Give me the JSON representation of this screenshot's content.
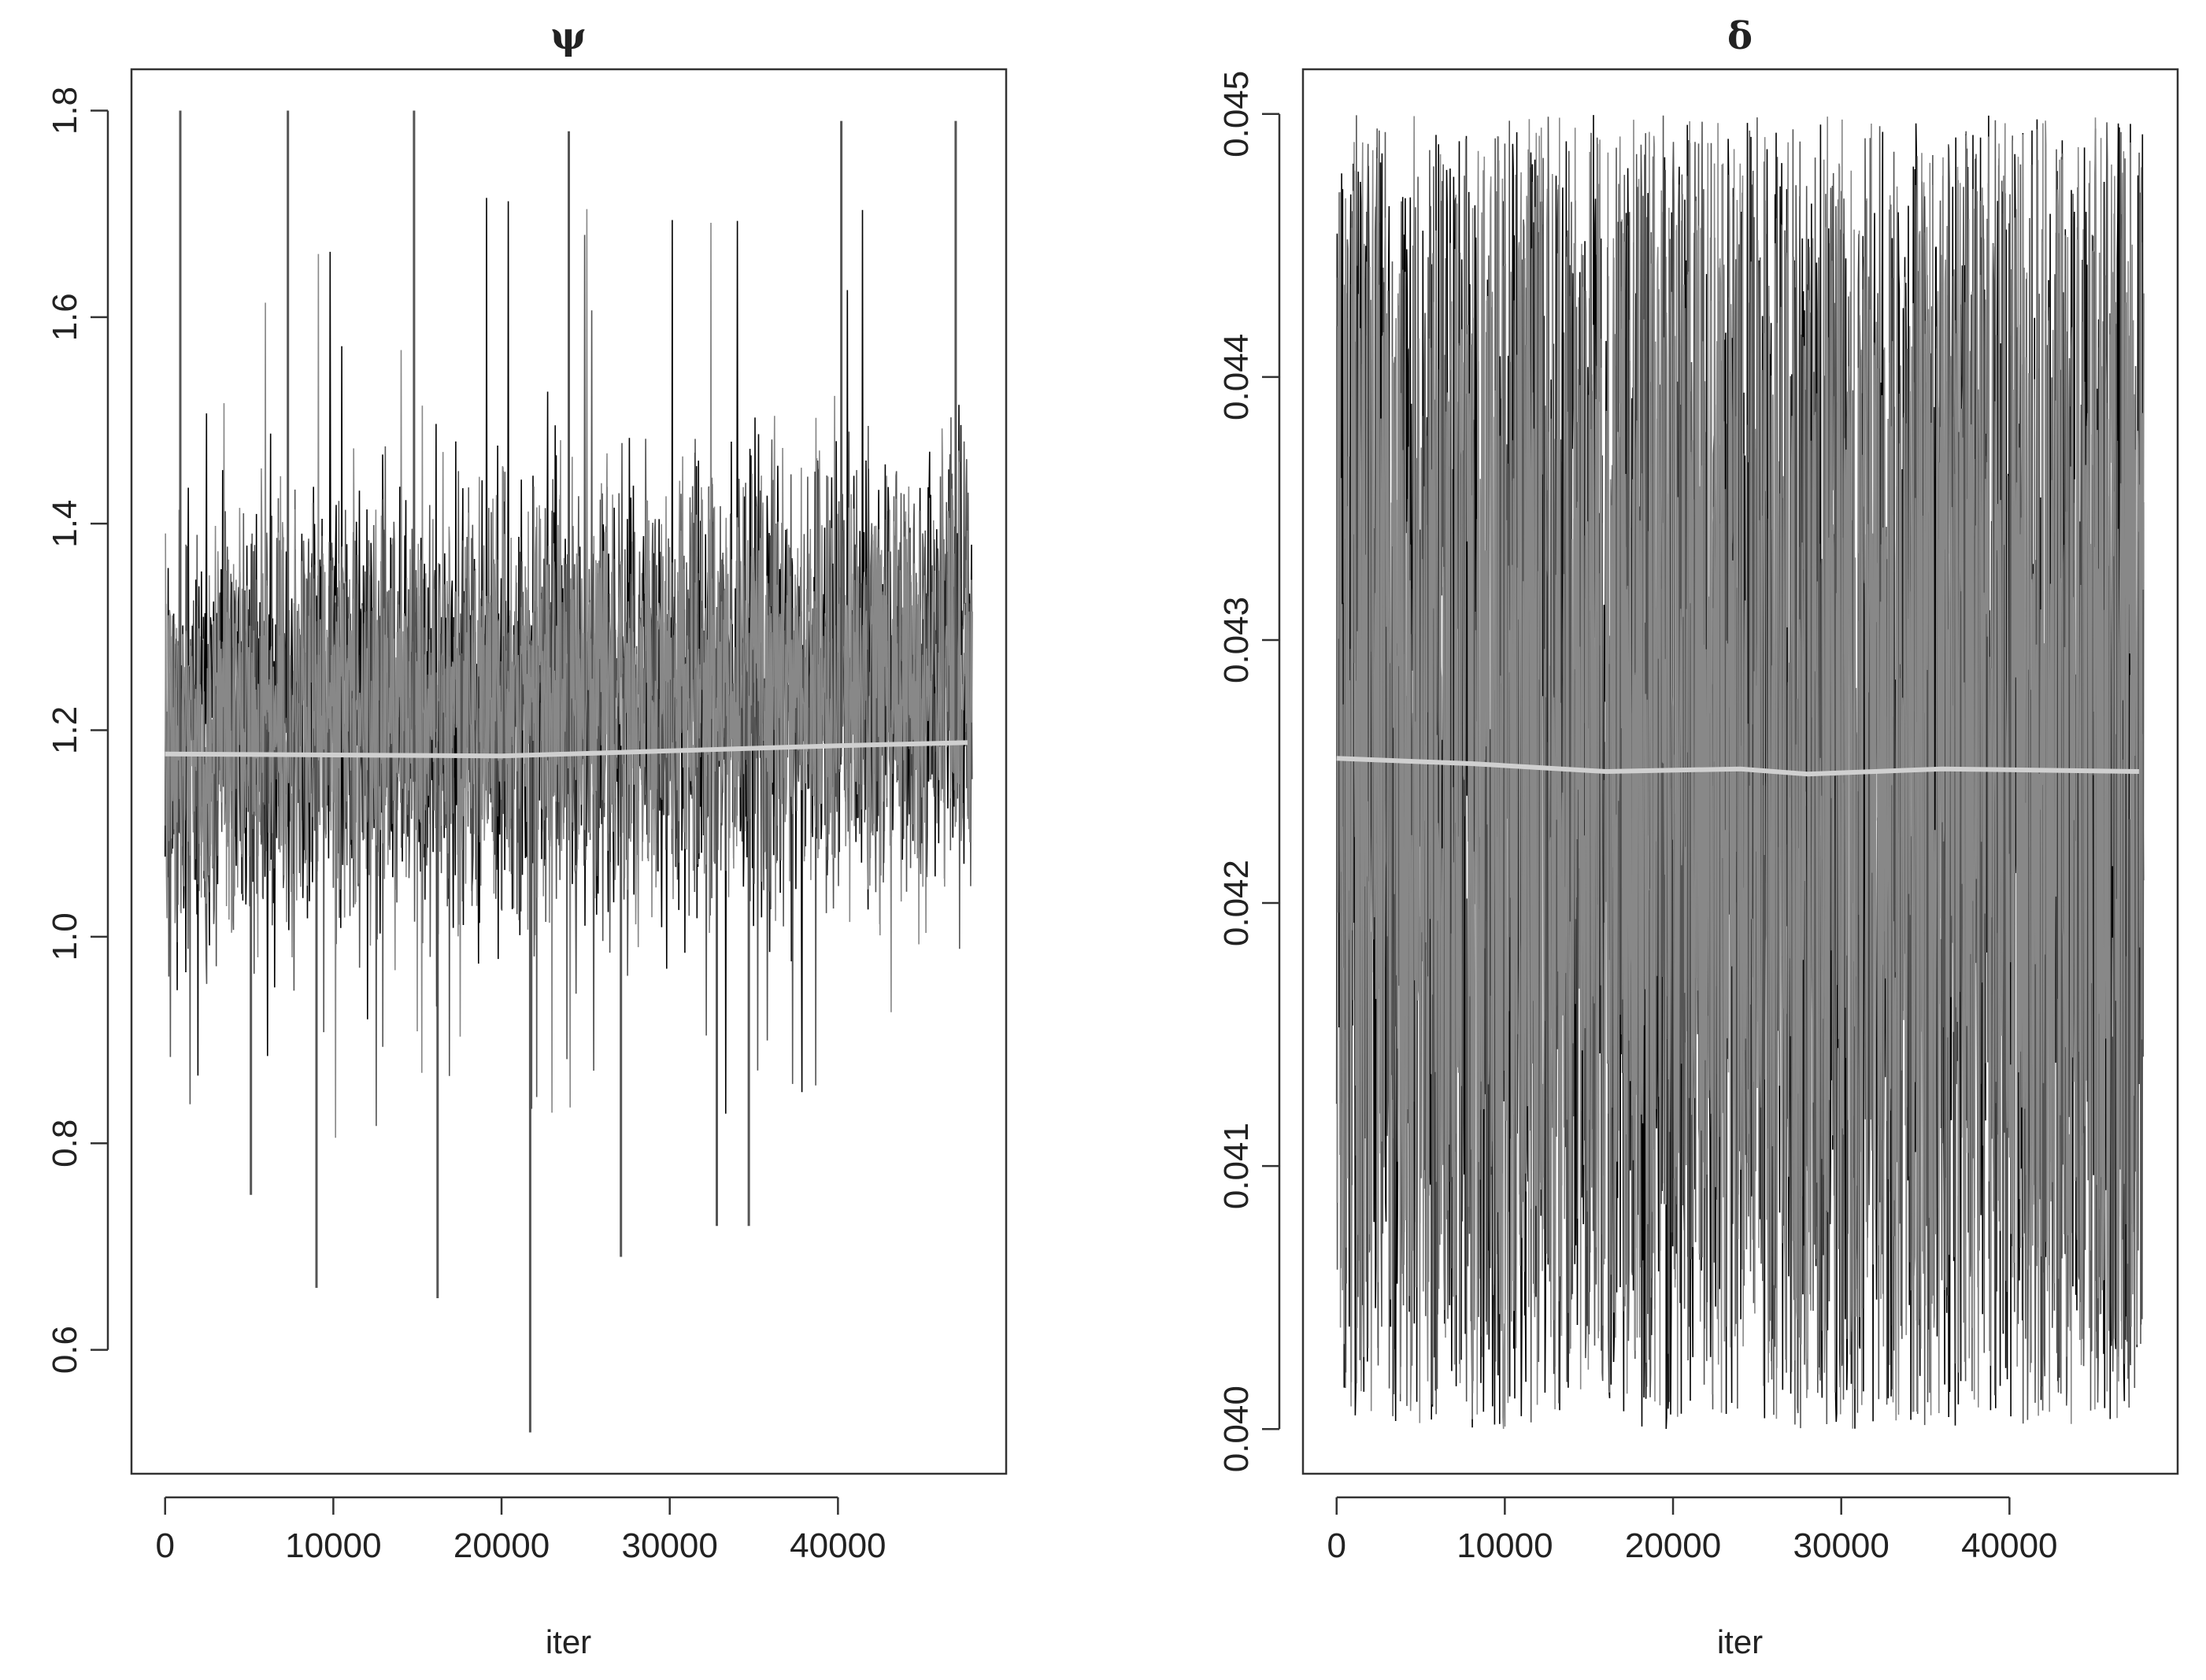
{
  "chart_data": [
    {
      "type": "line",
      "title": "ψ",
      "xlabel": "iter",
      "ylabel": "",
      "xlim": [
        -2000,
        50000
      ],
      "ylim": [
        0.48,
        1.84
      ],
      "x_ticks": [
        0,
        10000,
        20000,
        30000,
        40000
      ],
      "x_tick_labels": [
        "0",
        "10000",
        "20000",
        "30000",
        "40000"
      ],
      "y_ticks": [
        0.6,
        0.8,
        1.0,
        1.2,
        1.4,
        1.6,
        1.8
      ],
      "y_tick_labels": [
        "0.6",
        "0.8",
        "1.0",
        "1.2",
        "1.4",
        "1.6",
        "1.8"
      ],
      "grid": false,
      "iterations": 48000,
      "trace_colors": [
        "#000000",
        "#555555",
        "#888888"
      ],
      "band_lower_approx": [
        0.93,
        0.9,
        0.92,
        0.94,
        0.93,
        0.92,
        0.93,
        0.94,
        0.93,
        0.94
      ],
      "band_upper_approx": [
        1.44,
        1.5,
        1.52,
        1.5,
        1.52,
        1.53,
        1.54,
        1.55,
        1.56,
        1.56
      ],
      "band_x": [
        0,
        5000,
        10000,
        15000,
        20000,
        25000,
        30000,
        35000,
        40000,
        47700
      ],
      "spikes_low": [
        {
          "x": 9000,
          "y": 0.66
        },
        {
          "x": 16200,
          "y": 0.65
        },
        {
          "x": 21700,
          "y": 0.52
        },
        {
          "x": 27100,
          "y": 0.69
        },
        {
          "x": 32800,
          "y": 0.72
        },
        {
          "x": 34700,
          "y": 0.72
        },
        {
          "x": 5100,
          "y": 0.75
        }
      ],
      "spikes_high": [
        {
          "x": 900,
          "y": 1.8
        },
        {
          "x": 7300,
          "y": 1.8
        },
        {
          "x": 14800,
          "y": 1.8
        },
        {
          "x": 24000,
          "y": 1.78
        },
        {
          "x": 40200,
          "y": 1.79
        },
        {
          "x": 47000,
          "y": 1.79
        }
      ],
      "running_mean": {
        "x": [
          0,
          10000,
          20000,
          30000,
          40000,
          47700
        ],
        "y": [
          1.177,
          1.176,
          1.175,
          1.18,
          1.185,
          1.188
        ]
      },
      "mean_color": "#d0d0d0"
    },
    {
      "type": "line",
      "title": "δ",
      "xlabel": "iter",
      "ylabel": "",
      "xlim": [
        -2000,
        50000
      ],
      "ylim": [
        0.03983,
        0.04517
      ],
      "x_ticks": [
        0,
        10000,
        20000,
        30000,
        40000
      ],
      "x_tick_labels": [
        "0",
        "10000",
        "20000",
        "30000",
        "40000"
      ],
      "y_ticks": [
        0.04,
        0.041,
        0.042,
        0.043,
        0.044,
        0.045
      ],
      "y_tick_labels": [
        "0.040",
        "0.041",
        "0.042",
        "0.043",
        "0.044",
        "0.045"
      ],
      "grid": false,
      "iterations": 48000,
      "trace_colors": [
        "#000000",
        "#555555",
        "#888888"
      ],
      "support": [
        0.04,
        0.045
      ],
      "running_mean": {
        "x": [
          0,
          8000,
          16000,
          24000,
          28000,
          36000,
          47700
        ],
        "y": [
          0.04255,
          0.04253,
          0.0425,
          0.04251,
          0.04249,
          0.04251,
          0.0425
        ]
      },
      "mean_color": "#d0d0d0"
    }
  ]
}
